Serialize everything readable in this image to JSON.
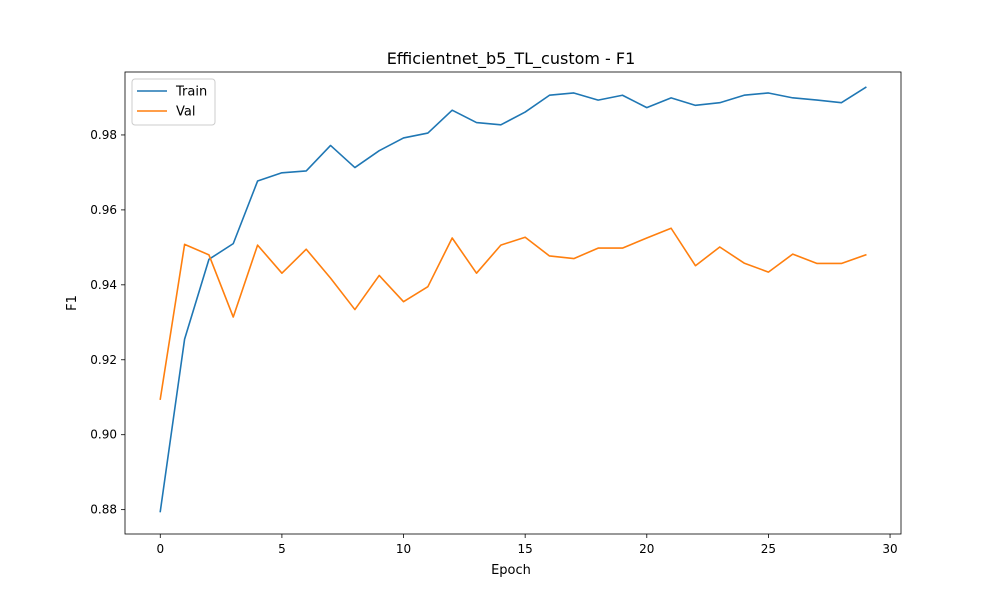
{
  "chart_data": {
    "type": "line",
    "title": "Efficientnet_b5_TL_custom - F1",
    "xlabel": "Epoch",
    "ylabel": "F1",
    "xlim": [
      -1.45,
      30.45
    ],
    "ylim": [
      0.8735,
      0.9968
    ],
    "xticks": [
      0,
      5,
      10,
      15,
      20,
      25,
      30
    ],
    "yticks": [
      0.88,
      0.9,
      0.92,
      0.94,
      0.96,
      0.98
    ],
    "ytick_labels": [
      "0.88",
      "0.90",
      "0.92",
      "0.94",
      "0.96",
      "0.98"
    ],
    "grid": false,
    "legend_position": "top-left",
    "x": [
      0,
      1,
      2,
      3,
      4,
      5,
      6,
      7,
      8,
      9,
      10,
      11,
      12,
      13,
      14,
      15,
      16,
      17,
      18,
      19,
      20,
      21,
      22,
      23,
      24,
      25,
      26,
      27,
      28,
      29
    ],
    "series": [
      {
        "name": "Train",
        "color": "#1f77b4",
        "values": [
          0.8795,
          0.9255,
          0.9468,
          0.951,
          0.9677,
          0.9699,
          0.9704,
          0.9772,
          0.9713,
          0.9758,
          0.9792,
          0.9805,
          0.9866,
          0.9833,
          0.9827,
          0.9861,
          0.9906,
          0.9912,
          0.9893,
          0.9906,
          0.9873,
          0.9899,
          0.9879,
          0.9886,
          0.9906,
          0.9912,
          0.9899,
          0.9893,
          0.9886,
          0.9927
        ]
      },
      {
        "name": "Val",
        "color": "#ff7f0e",
        "values": [
          0.9095,
          0.9508,
          0.948,
          0.9314,
          0.9506,
          0.9431,
          0.9495,
          0.9418,
          0.9334,
          0.9425,
          0.9355,
          0.9395,
          0.9525,
          0.9431,
          0.9506,
          0.9527,
          0.9477,
          0.947,
          0.9498,
          0.9498,
          0.9525,
          0.9551,
          0.9451,
          0.9501,
          0.9458,
          0.9434,
          0.9482,
          0.9457,
          0.9457,
          0.948
        ]
      }
    ]
  }
}
